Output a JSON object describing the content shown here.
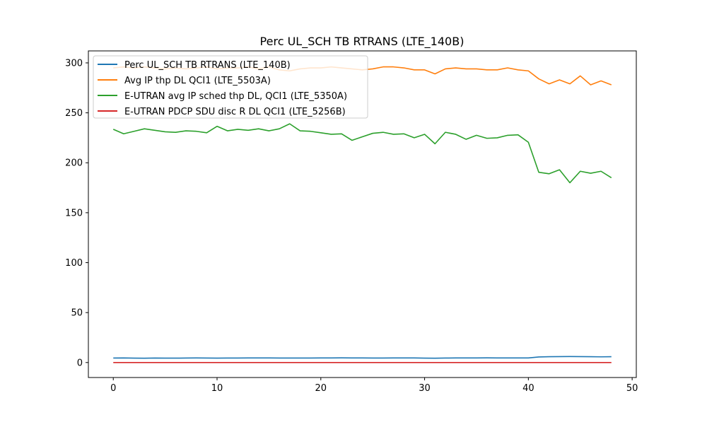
{
  "chart_data": {
    "type": "line",
    "title": "Perc UL_SCH TB RTRANS (LTE_140B)",
    "xlabel": "",
    "ylabel": "",
    "xlim": [
      -2.4,
      50.4
    ],
    "ylim": [
      -15,
      312
    ],
    "xticks": [
      0,
      10,
      20,
      30,
      40,
      50
    ],
    "yticks": [
      0,
      50,
      100,
      150,
      200,
      250,
      300
    ],
    "grid": false,
    "legend_position": "top-left",
    "x": [
      0,
      1,
      2,
      3,
      4,
      5,
      6,
      7,
      8,
      9,
      10,
      11,
      12,
      13,
      14,
      15,
      16,
      17,
      18,
      19,
      20,
      21,
      22,
      23,
      24,
      25,
      26,
      27,
      28,
      29,
      30,
      31,
      32,
      33,
      34,
      35,
      36,
      37,
      38,
      39,
      40,
      41,
      42,
      43,
      44,
      45,
      46,
      47,
      48
    ],
    "series": [
      {
        "name": "Perc UL_SCH TB RTRANS (LTE_140B)",
        "color": "#1f77b4",
        "values": [
          4.5,
          4.6,
          4.4,
          4.3,
          4.5,
          4.4,
          4.4,
          4.5,
          4.6,
          4.5,
          4.4,
          4.5,
          4.5,
          4.6,
          4.6,
          4.6,
          4.5,
          4.5,
          4.5,
          4.5,
          4.6,
          4.6,
          4.7,
          4.6,
          4.6,
          4.5,
          4.5,
          4.6,
          4.6,
          4.6,
          4.4,
          4.3,
          4.5,
          4.6,
          4.6,
          4.6,
          4.7,
          4.6,
          4.6,
          4.6,
          4.6,
          5.6,
          5.8,
          5.9,
          6.0,
          5.9,
          5.8,
          5.7,
          5.8
        ]
      },
      {
        "name": "Avg IP thp DL QCI1 (LTE_5503A)",
        "color": "#ff7f0e",
        "values": [
          295,
          296,
          295,
          296,
          295,
          294,
          295,
          294,
          295,
          296,
          294,
          295,
          295,
          296,
          294,
          296,
          293,
          292,
          294,
          295,
          295,
          296,
          295,
          294,
          293,
          294,
          296,
          296,
          295,
          293,
          293,
          289,
          294,
          295,
          294,
          294,
          293,
          293,
          295,
          293,
          292,
          284,
          279,
          283,
          279,
          287,
          278,
          282,
          278
        ]
      },
      {
        "name": "E-UTRAN avg IP sched thp DL, QCI1 (LTE_5350A)",
        "color": "#2ca02c",
        "values": [
          233.5,
          229,
          231.5,
          234,
          232.5,
          231,
          230.5,
          232,
          231.5,
          230,
          236.5,
          232,
          233.5,
          232.5,
          234,
          232,
          234,
          239,
          232,
          231.5,
          230,
          228.5,
          229,
          222.5,
          226,
          229.5,
          230.5,
          228.5,
          229,
          225,
          228.5,
          219,
          230.5,
          228.5,
          223.5,
          227.5,
          224.5,
          225,
          227.5,
          228,
          220.5,
          190.5,
          189,
          193,
          180,
          191.5,
          189.5,
          191.5,
          185
        ]
      },
      {
        "name": "E-UTRAN PDCP SDU disc R DL QCI1 (LTE_5256B)",
        "color": "#d62728",
        "values": [
          0.02,
          0.02,
          0.02,
          0.02,
          0.02,
          0.02,
          0.02,
          0.02,
          0.02,
          0.02,
          0.02,
          0.02,
          0.02,
          0.02,
          0.02,
          0.02,
          0.02,
          0.02,
          0.02,
          0.02,
          0.02,
          0.02,
          0.02,
          0.02,
          0.02,
          0.02,
          0.02,
          0.02,
          0.02,
          0.02,
          0.02,
          0.02,
          0.02,
          0.02,
          0.02,
          0.02,
          0.02,
          0.02,
          0.02,
          0.02,
          0.02,
          0.02,
          0.02,
          0.02,
          0.02,
          0.02,
          0.02,
          0.02,
          0.02
        ]
      }
    ]
  }
}
